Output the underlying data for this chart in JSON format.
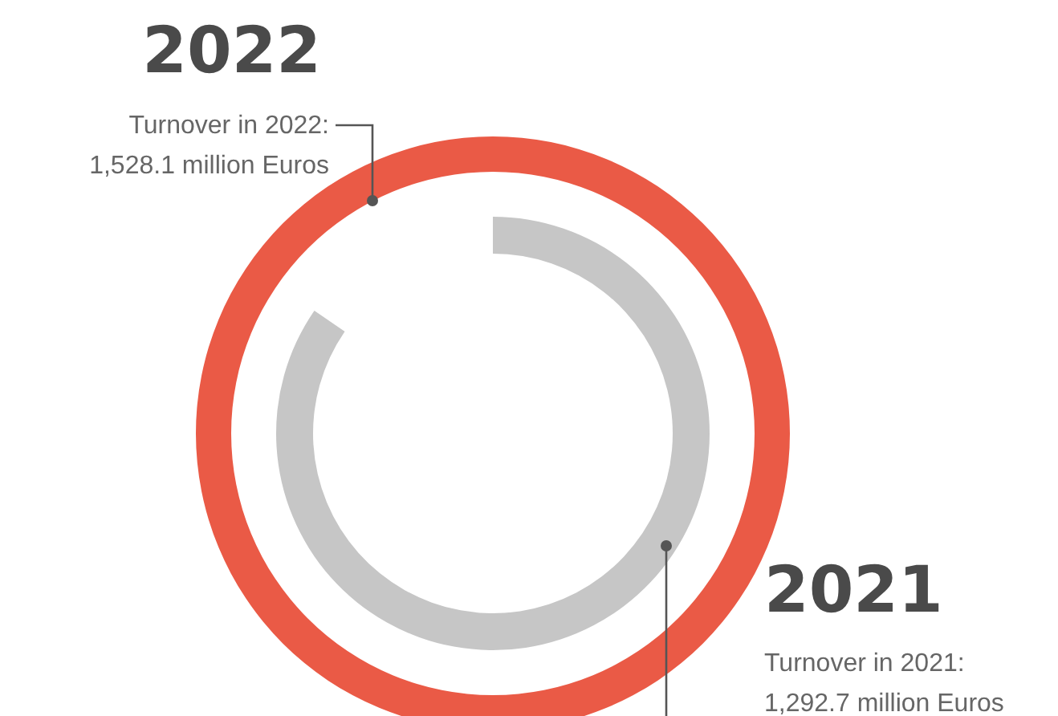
{
  "chart_data": {
    "type": "other",
    "categories": [
      "2022",
      "2021"
    ],
    "values": [
      1528.1,
      1292.7
    ],
    "colors": [
      "#ea5a46",
      "#c6c6c6"
    ],
    "value_labels": [
      "1,528.1 million Euros",
      "1,292.7 million Euros"
    ],
    "annotations": [
      "Turnover in 2022:",
      "Turnover in 2021:"
    ]
  }
}
